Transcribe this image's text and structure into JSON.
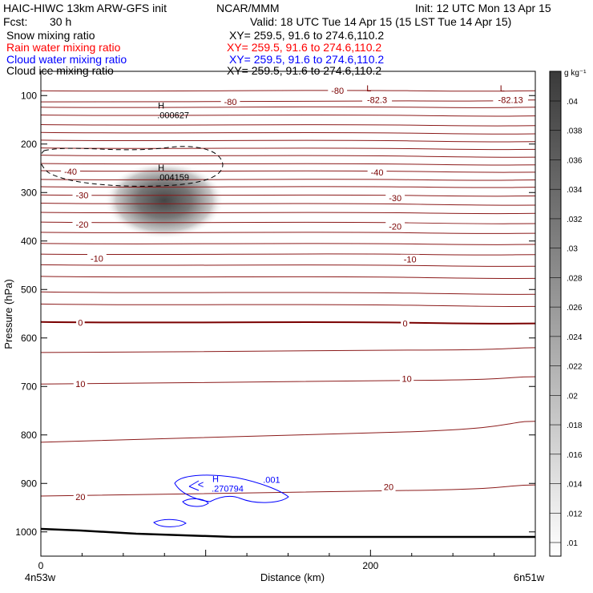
{
  "header": {
    "model": "HAIC-HIWC 13km ARW-GFS init",
    "center": "NCAR/MMM",
    "init": "Init: 12 UTC Mon 13 Apr 15",
    "fcst_label": "Fcst:",
    "fcst_value": "30 h",
    "valid": "Valid: 18 UTC Tue 14 Apr 15 (15 LST Tue 14 Apr 15)"
  },
  "fields": [
    {
      "name": "Snow mixing ratio",
      "xy": "XY= 259.5, 91.6 to 274.6,110.2",
      "color": "#000000"
    },
    {
      "name": "Rain water mixing ratio",
      "xy": "XY= 259.5, 91.6 to 274.6,110.2",
      "color": "#ff0000"
    },
    {
      "name": "Cloud water mixing ratio",
      "xy": "XY= 259.5, 91.6 to 274.6,110.2",
      "color": "#0000ff"
    },
    {
      "name": "Cloud ice mixing ratio",
      "xy": "XY= 259.5, 91.6 to 274.6,110.2",
      "color": "#000000"
    }
  ],
  "chart_data": {
    "type": "contour-cross-section",
    "xlabel": "Distance (km)",
    "ylabel": "Pressure (hPa)",
    "x_ticks": [
      0,
      200
    ],
    "y_ticks": [
      100,
      200,
      300,
      400,
      500,
      600,
      700,
      800,
      900,
      1000
    ],
    "xlim": [
      0,
      300
    ],
    "ylim": [
      1050,
      50
    ],
    "x_left_label": "4n53w",
    "x_right_label": "6n51w",
    "colorbar": {
      "unit": "g kg⁻¹",
      "ticks": [
        ".01",
        ".012",
        ".014",
        ".016",
        ".018",
        ".02",
        ".022",
        ".024",
        ".026",
        ".028",
        ".03",
        ".032",
        ".034",
        ".036",
        ".038",
        ".04"
      ]
    },
    "temperature_labels": [
      {
        "text": "-80",
        "x": 180,
        "p": 90
      },
      {
        "text": "-80",
        "x": 115,
        "p": 113
      },
      {
        "text": "-82.3",
        "x": 204,
        "p": 109
      },
      {
        "text": "-82.13",
        "x": 285,
        "p": 109
      },
      {
        "text": "-40",
        "x": 18,
        "p": 257
      },
      {
        "text": "-40",
        "x": 204,
        "p": 258
      },
      {
        "text": "-30",
        "x": 25,
        "p": 305
      },
      {
        "text": "-30",
        "x": 215,
        "p": 311
      },
      {
        "text": "-20",
        "x": 25,
        "p": 366
      },
      {
        "text": "-20",
        "x": 215,
        "p": 370
      },
      {
        "text": "-10",
        "x": 34,
        "p": 436
      },
      {
        "text": "-10",
        "x": 224,
        "p": 438
      },
      {
        "text": "0",
        "x": 24,
        "p": 568
      },
      {
        "text": "0",
        "x": 221,
        "p": 570
      },
      {
        "text": "10",
        "x": 24,
        "p": 695
      },
      {
        "text": "10",
        "x": 222,
        "p": 684
      },
      {
        "text": "20",
        "x": 24,
        "p": 928
      },
      {
        "text": "20",
        "x": 211,
        "p": 907
      }
    ],
    "extrema": [
      {
        "type": "L",
        "value": "",
        "x": 199,
        "p": 95
      },
      {
        "type": "L",
        "value": "",
        "x": 280,
        "p": 95
      },
      {
        "type": "H",
        "value": ".000627",
        "x": 73,
        "p": 130
      },
      {
        "type": "H",
        "value": ".004159",
        "x": 73,
        "p": 258
      },
      {
        "type": "H",
        "value": ".270794",
        "x": 106,
        "p": 900
      }
    ],
    "cloud_water_labels": [
      {
        "text": ".001",
        "x": 140,
        "p": 892
      }
    ],
    "isotherm_pressures_left": [
      90,
      113,
      124,
      140,
      160,
      176,
      192,
      208,
      223,
      240,
      255,
      273,
      288,
      305,
      322,
      341,
      361,
      382,
      405,
      427,
      449,
      473,
      505,
      530,
      567,
      630,
      695,
      815,
      926
    ],
    "isotherm_pressures_right": [
      90,
      109,
      124,
      142,
      162,
      179,
      195,
      211,
      227,
      243,
      258,
      274,
      289,
      307,
      326,
      343,
      364,
      384,
      407,
      428,
      452,
      477,
      510,
      535,
      570,
      620,
      680,
      772,
      903,
      961
    ]
  }
}
